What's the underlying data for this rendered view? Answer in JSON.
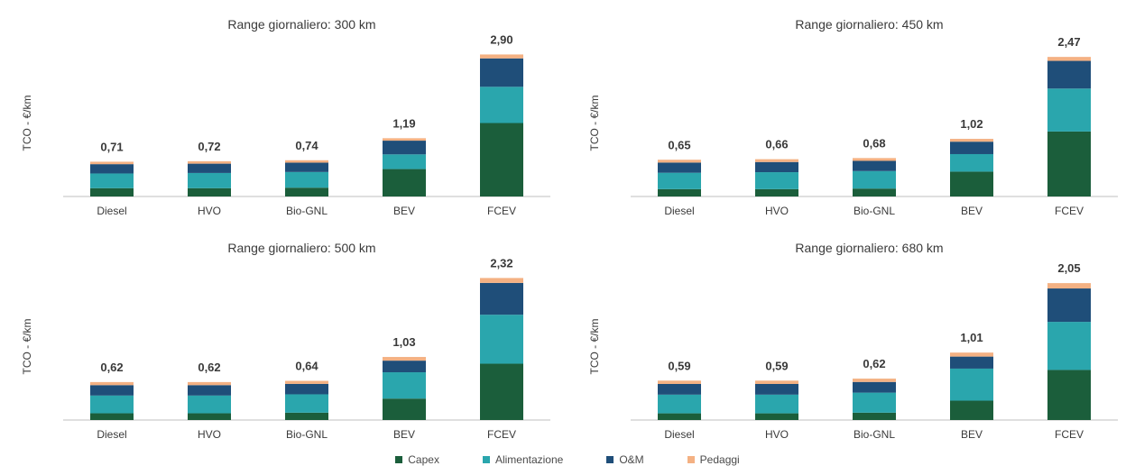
{
  "colors": {
    "Capex": "#1b5e3b",
    "Alimentazione": "#2aa6ad",
    "O&M": "#1f4e79",
    "Pedaggi": "#f4b183",
    "axis": "#bfbfbf",
    "text": "#3a3a3a"
  },
  "legend": {
    "items": [
      {
        "label": "Capex",
        "key": "Capex"
      },
      {
        "label": "Alimentazione",
        "key": "Alimentazione"
      },
      {
        "label": "O&M",
        "key": "O&M"
      },
      {
        "label": "Pedaggi",
        "key": "Pedaggi"
      }
    ]
  },
  "chart_data": [
    {
      "type": "bar",
      "stacked": true,
      "title": "Range giornaliero: 300 km",
      "ylabel": "TCO - €/km",
      "ylim": [
        0,
        3.0
      ],
      "categories": [
        "Diesel",
        "HVO",
        "Bio-GNL",
        "BEV",
        "FCEV"
      ],
      "totals_labels": [
        "0,71",
        "0,72",
        "0,74",
        "1,19",
        "2,90"
      ],
      "series": [
        {
          "name": "Capex",
          "values": [
            0.17,
            0.17,
            0.18,
            0.56,
            1.5
          ]
        },
        {
          "name": "Alimentazione",
          "values": [
            0.3,
            0.31,
            0.32,
            0.3,
            0.74
          ]
        },
        {
          "name": "O&M",
          "values": [
            0.19,
            0.19,
            0.19,
            0.28,
            0.58
          ]
        },
        {
          "name": "Pedaggi",
          "values": [
            0.05,
            0.05,
            0.05,
            0.05,
            0.08
          ]
        }
      ]
    },
    {
      "type": "bar",
      "stacked": true,
      "title": "Range giornaliero: 450 km",
      "ylabel": "TCO - €/km",
      "ylim": [
        0,
        2.6
      ],
      "categories": [
        "Diesel",
        "HVO",
        "Bio-GNL",
        "BEV",
        "FCEV"
      ],
      "totals_labels": [
        "0,65",
        "0,66",
        "0,68",
        "1,02",
        "2,47"
      ],
      "series": [
        {
          "name": "Capex",
          "values": [
            0.13,
            0.13,
            0.14,
            0.44,
            1.15
          ]
        },
        {
          "name": "Alimentazione",
          "values": [
            0.29,
            0.3,
            0.31,
            0.31,
            0.76
          ]
        },
        {
          "name": "O&M",
          "values": [
            0.18,
            0.18,
            0.18,
            0.22,
            0.49
          ]
        },
        {
          "name": "Pedaggi",
          "values": [
            0.05,
            0.05,
            0.05,
            0.05,
            0.07
          ]
        }
      ]
    },
    {
      "type": "bar",
      "stacked": true,
      "title": "Range giornaliero: 500 km",
      "ylabel": "TCO - €/km",
      "ylim": [
        0,
        2.4
      ],
      "categories": [
        "Diesel",
        "HVO",
        "Bio-GNL",
        "BEV",
        "FCEV"
      ],
      "totals_labels": [
        "0,62",
        "0,62",
        "0,64",
        "1,03",
        "2,32"
      ],
      "series": [
        {
          "name": "Capex",
          "values": [
            0.11,
            0.11,
            0.12,
            0.35,
            0.92
          ]
        },
        {
          "name": "Alimentazione",
          "values": [
            0.29,
            0.29,
            0.3,
            0.43,
            0.8
          ]
        },
        {
          "name": "O&M",
          "values": [
            0.17,
            0.17,
            0.17,
            0.19,
            0.52
          ]
        },
        {
          "name": "Pedaggi",
          "values": [
            0.05,
            0.05,
            0.05,
            0.06,
            0.08
          ]
        }
      ]
    },
    {
      "type": "bar",
      "stacked": true,
      "title": "Range giornaliero: 680 km",
      "ylabel": "TCO - €/km",
      "ylim": [
        0,
        2.2
      ],
      "categories": [
        "Diesel",
        "HVO",
        "Bio-GNL",
        "BEV",
        "FCEV"
      ],
      "totals_labels": [
        "0,59",
        "0,59",
        "0,62",
        "1,01",
        "2,05"
      ],
      "series": [
        {
          "name": "Capex",
          "values": [
            0.1,
            0.1,
            0.11,
            0.29,
            0.75
          ]
        },
        {
          "name": "Alimentazione",
          "values": [
            0.28,
            0.28,
            0.3,
            0.48,
            0.72
          ]
        },
        {
          "name": "O&M",
          "values": [
            0.16,
            0.16,
            0.16,
            0.18,
            0.5
          ]
        },
        {
          "name": "Pedaggi",
          "values": [
            0.05,
            0.05,
            0.05,
            0.06,
            0.08
          ]
        }
      ]
    }
  ]
}
